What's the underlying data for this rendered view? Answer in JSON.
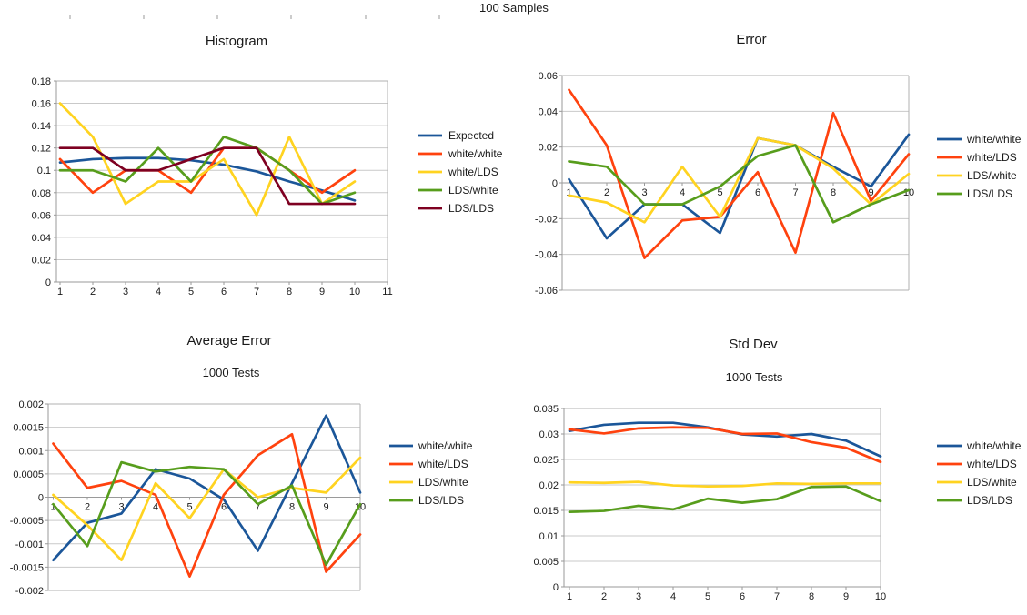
{
  "header": {
    "title": "100 Samples"
  },
  "palette": {
    "blue": "#1B5699",
    "red": "#FF420E",
    "yellow": "#FFD320",
    "green": "#579D1C",
    "maroon": "#7E0021",
    "grid": "#c9c9c9",
    "border": "#b2b2b2",
    "axis": "#9a9a9a",
    "text": "#1a1a1a"
  },
  "chart_data": [
    {
      "id": "histogram",
      "type": "line",
      "title": "Histogram",
      "xlabel": "",
      "ylabel": "",
      "grid": true,
      "legend_position": "right",
      "x": [
        1,
        2,
        3,
        4,
        5,
        6,
        7,
        8,
        9,
        10
      ],
      "xticks": [
        1,
        2,
        3,
        4,
        5,
        6,
        7,
        8,
        9,
        10,
        11
      ],
      "ylim": [
        0,
        0.18
      ],
      "ystep": 0.02,
      "x_axis_at": "bottom",
      "series": [
        {
          "name": "Expected",
          "color": "#1B5699",
          "values": [
            0.107,
            0.11,
            0.111,
            0.111,
            0.109,
            0.105,
            0.099,
            0.09,
            0.082,
            0.073
          ]
        },
        {
          "name": "white/white",
          "color": "#FF420E",
          "values": [
            0.11,
            0.08,
            0.1,
            0.1,
            0.08,
            0.12,
            0.12,
            0.1,
            0.08,
            0.1
          ]
        },
        {
          "name": "white/LDS",
          "color": "#FFD320",
          "values": [
            0.16,
            0.13,
            0.07,
            0.09,
            0.09,
            0.11,
            0.06,
            0.13,
            0.07,
            0.09
          ]
        },
        {
          "name": "LDS/white",
          "color": "#579D1C",
          "values": [
            0.1,
            0.1,
            0.09,
            0.12,
            0.09,
            0.13,
            0.12,
            0.1,
            0.07,
            0.08
          ]
        },
        {
          "name": "LDS/LDS",
          "color": "#7E0021",
          "values": [
            0.12,
            0.12,
            0.1,
            0.1,
            0.11,
            0.12,
            0.12,
            0.07,
            0.07,
            0.07
          ]
        }
      ]
    },
    {
      "id": "error",
      "type": "line",
      "title": "Error",
      "xlabel": "",
      "ylabel": "",
      "grid": true,
      "legend_position": "right",
      "x": [
        1,
        2,
        3,
        4,
        5,
        6,
        7,
        8,
        9,
        10
      ],
      "xticks": [
        1,
        2,
        3,
        4,
        5,
        6,
        7,
        8,
        9,
        10
      ],
      "ylim": [
        -0.06,
        0.06
      ],
      "ystep": 0.02,
      "x_axis_at": "zero",
      "series": [
        {
          "name": "white/white",
          "color": "#1B5699",
          "values": [
            0.002,
            -0.031,
            -0.012,
            -0.012,
            -0.028,
            0.025,
            0.021,
            0.009,
            -0.002,
            0.027
          ]
        },
        {
          "name": "white/LDS",
          "color": "#FF420E",
          "values": [
            0.052,
            0.021,
            -0.042,
            -0.021,
            -0.019,
            0.006,
            -0.039,
            0.039,
            -0.01,
            0.016
          ]
        },
        {
          "name": "LDS/white",
          "color": "#FFD320",
          "values": [
            -0.007,
            -0.011,
            -0.022,
            0.009,
            -0.019,
            0.025,
            0.021,
            0.008,
            -0.012,
            0.005
          ]
        },
        {
          "name": "LDS/LDS",
          "color": "#579D1C",
          "values": [
            0.012,
            0.009,
            -0.012,
            -0.012,
            -0.002,
            0.015,
            0.021,
            -0.022,
            -0.012,
            -0.004
          ]
        }
      ]
    },
    {
      "id": "average_error",
      "type": "line",
      "title": "Average Error",
      "subtitle": "1000 Tests",
      "xlabel": "",
      "ylabel": "",
      "grid": true,
      "legend_position": "right",
      "x": [
        1,
        2,
        3,
        4,
        5,
        6,
        7,
        8,
        9,
        10
      ],
      "xticks": [
        1,
        2,
        3,
        4,
        5,
        6,
        7,
        8,
        9,
        10
      ],
      "ylim": [
        -0.002,
        0.002
      ],
      "ystep": 0.0005,
      "x_axis_at": "zero",
      "series": [
        {
          "name": "white/white",
          "color": "#1B5699",
          "values": [
            -0.00135,
            -0.00055,
            -0.00035,
            0.0006,
            0.0004,
            -5e-05,
            -0.00115,
            0.0003,
            0.00175,
            0.0001
          ]
        },
        {
          "name": "white/LDS",
          "color": "#FF420E",
          "values": [
            0.00115,
            0.0002,
            0.00035,
            5e-05,
            -0.0017,
            5e-05,
            0.0009,
            0.00135,
            -0.0016,
            -0.0008
          ]
        },
        {
          "name": "LDS/white",
          "color": "#FFD320",
          "values": [
            5e-05,
            -0.0006,
            -0.00135,
            0.0003,
            -0.00045,
            0.0006,
            0.0,
            0.0002,
            0.0001,
            0.00085
          ]
        },
        {
          "name": "LDS/LDS",
          "color": "#579D1C",
          "values": [
            -0.00015,
            -0.00105,
            0.00075,
            0.00055,
            0.00065,
            0.0006,
            -0.00015,
            0.00025,
            -0.00145,
            -0.00015
          ]
        }
      ]
    },
    {
      "id": "std_dev",
      "type": "line",
      "title": "Std Dev",
      "subtitle": "1000 Tests",
      "xlabel": "",
      "ylabel": "",
      "grid": true,
      "legend_position": "right",
      "x": [
        1,
        2,
        3,
        4,
        5,
        6,
        7,
        8,
        9,
        10
      ],
      "xticks": [
        1,
        2,
        3,
        4,
        5,
        6,
        7,
        8,
        9,
        10
      ],
      "ylim": [
        0,
        0.035
      ],
      "ystep": 0.005,
      "x_axis_at": "bottom",
      "series": [
        {
          "name": "white/white",
          "color": "#1B5699",
          "values": [
            0.0306,
            0.0318,
            0.0322,
            0.0322,
            0.0313,
            0.0299,
            0.0295,
            0.03,
            0.0287,
            0.0256
          ]
        },
        {
          "name": "white/LDS",
          "color": "#FF420E",
          "values": [
            0.0309,
            0.0301,
            0.0311,
            0.0313,
            0.0312,
            0.03,
            0.0301,
            0.0284,
            0.0273,
            0.0245
          ]
        },
        {
          "name": "LDS/white",
          "color": "#FFD320",
          "values": [
            0.0205,
            0.0204,
            0.0206,
            0.0199,
            0.0197,
            0.0198,
            0.0203,
            0.0202,
            0.0203,
            0.0203
          ]
        },
        {
          "name": "LDS/LDS",
          "color": "#579D1C",
          "values": [
            0.0147,
            0.0149,
            0.0159,
            0.0152,
            0.0173,
            0.0165,
            0.0172,
            0.0196,
            0.0197,
            0.0168
          ]
        }
      ]
    }
  ]
}
